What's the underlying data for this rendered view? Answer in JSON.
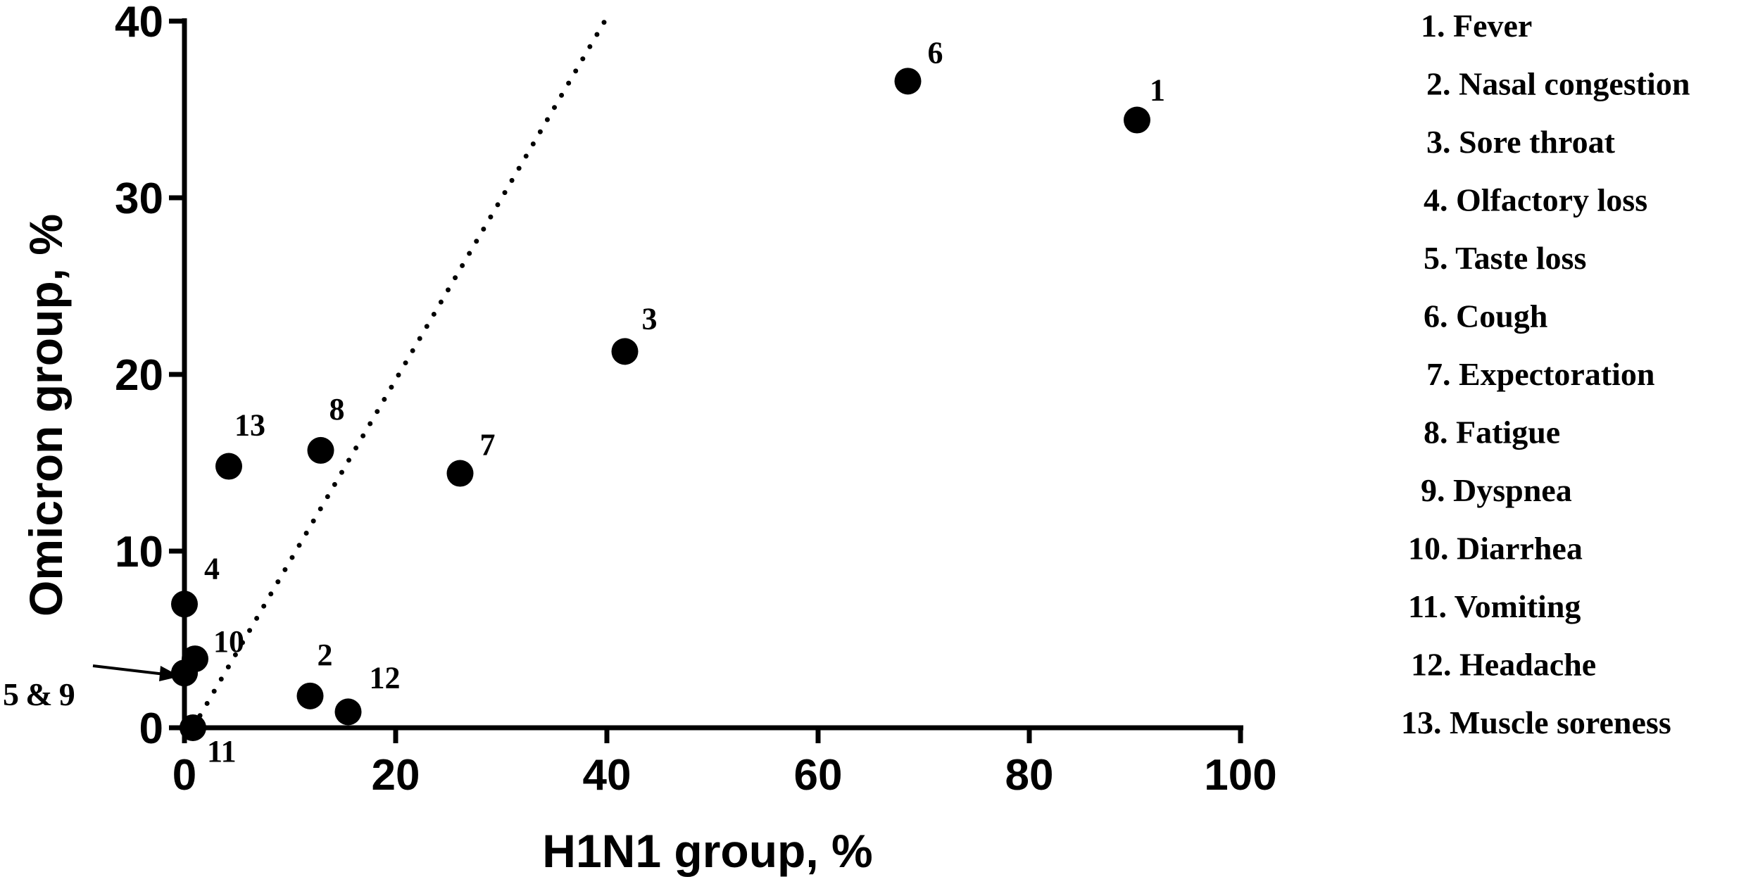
{
  "chart_data": {
    "type": "scatter",
    "xlabel": "H1N1 group,  %",
    "ylabel": "Omicron group,  %",
    "xlim": [
      0,
      100
    ],
    "ylim": [
      0,
      40
    ],
    "xticks": [
      0,
      20,
      40,
      60,
      80,
      100
    ],
    "yticks": [
      0,
      10,
      20,
      30,
      40
    ],
    "reference_line": {
      "style": "dotted",
      "from": [
        0.8,
        0
      ],
      "to": [
        39.8,
        40
      ]
    },
    "points": [
      {
        "id": "1",
        "label": "1",
        "x": 90.2,
        "y": 34.4
      },
      {
        "id": "2",
        "label": "2",
        "x": 11.9,
        "y": 1.8
      },
      {
        "id": "3",
        "label": "3",
        "x": 41.7,
        "y": 21.3
      },
      {
        "id": "4",
        "label": "4",
        "x": 0.0,
        "y": 7.0
      },
      {
        "id": "5",
        "label": "",
        "x": 0.0,
        "y": 3.1
      },
      {
        "id": "6",
        "label": "6",
        "x": 68.5,
        "y": 36.6
      },
      {
        "id": "7",
        "label": "7",
        "x": 26.1,
        "y": 14.4
      },
      {
        "id": "8",
        "label": "8",
        "x": 12.9,
        "y": 15.7
      },
      {
        "id": "9",
        "label": "",
        "x": 0.0,
        "y": 3.1
      },
      {
        "id": "10",
        "label": "10",
        "x": 1.0,
        "y": 3.9
      },
      {
        "id": "11",
        "label": "11",
        "x": 0.8,
        "y": 0.0
      },
      {
        "id": "12",
        "label": "12",
        "x": 15.5,
        "y": 0.9
      },
      {
        "id": "13",
        "label": "13",
        "x": 4.2,
        "y": 14.8
      }
    ],
    "annotation": {
      "text": "5 & 9",
      "arrow_target_point": "5"
    },
    "legend": [
      "1. Fever",
      "2. Nasal congestion",
      "3. Sore throat",
      "4. Olfactory loss",
      "5. Taste loss",
      "6. Cough",
      "7. Expectoration",
      "8. Fatigue",
      "9. Dyspnea",
      "10. Diarrhea",
      "11. Vomiting",
      "12. Headache",
      "13. Muscle soreness"
    ],
    "legend_position": "right"
  }
}
